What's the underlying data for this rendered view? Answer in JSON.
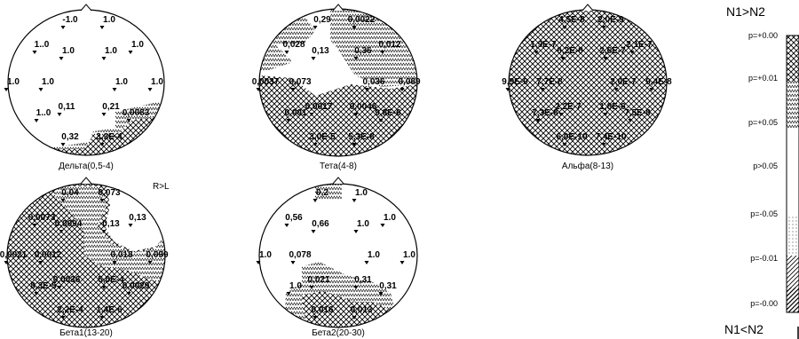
{
  "maps": [
    {
      "id": "delta",
      "caption": "Дельта(0,5-4)",
      "labels": [
        "-1.0",
        "1.0",
        "1..0",
        "1.0",
        "1.0",
        "1.0",
        "1.0",
        "1.0",
        "1.0",
        "1.0",
        "1..0",
        "0,11",
        "0,21",
        "0,0083",
        "0,32",
        "3,3E-4"
      ]
    },
    {
      "id": "theta",
      "caption": "Тета(4-8)",
      "labels": [
        "0,29",
        "0,0022",
        "0,028",
        "0,13",
        "0,36",
        "0,012",
        "0,0037",
        "0,073",
        "0,036",
        "0,089",
        "0,001",
        "0,0017",
        "0,0046",
        "9,8E-6",
        "3,0E-5",
        "5,3E-8"
      ]
    },
    {
      "id": "alpha",
      "caption": "Альфа(8-13)",
      "labels": [
        "4,5E-8",
        "2,0E-9",
        "1,9E-7",
        "6,2E-8",
        "2,6E-7",
        "2,1E-7",
        "9,9E-9",
        "7,7E-8",
        "2,0E-7",
        "9,4E-8",
        "7,3E-8",
        "2,2E-7",
        "1,8E-6",
        "7,5E-8",
        "6,0E-10",
        "7,4E-10"
      ]
    },
    {
      "id": "beta1",
      "caption": "Бета1(13-20)",
      "labels": [
        "0,04",
        "0,073",
        "0,0073",
        "0,0094",
        "0,13",
        "0,13",
        "0,0021",
        "0,0012",
        "0,018",
        "0,099",
        "8,3E-5",
        "0,0036",
        "5,0E-4",
        "0,0029",
        "2,2E-4",
        "1,4E-6"
      ]
    },
    {
      "id": "beta2",
      "caption": "Бета2(20-30)",
      "labels": [
        "0,2",
        "1.0",
        "0,56",
        "0,66",
        "1.0",
        "1.0",
        "1.0",
        "0,078",
        "1.0",
        "1.0",
        "1.0",
        "0,021",
        "0,31",
        "0,31",
        "0,016",
        "0,013"
      ]
    }
  ],
  "side_label": "R>L",
  "legend": {
    "top_label": "N1>N2",
    "bottom_label": "N1<N2",
    "levels": [
      "p=+0.00",
      "p=+0.01",
      "p=+0.05",
      "p>0.05",
      "p=-0.05",
      "p=-0.01",
      "p=-0.00"
    ]
  }
}
